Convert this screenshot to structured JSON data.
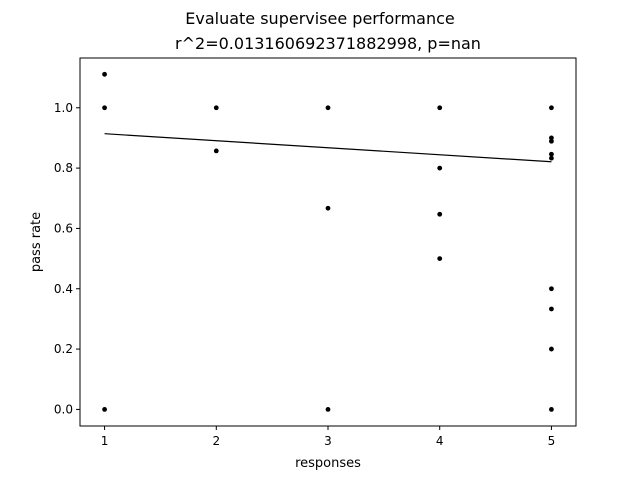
{
  "chart_data": {
    "type": "scatter",
    "suptitle": "Evaluate supervisee performance",
    "title": "r^2=0.013160692371882998, p=nan",
    "xlabel": "responses",
    "ylabel": "pass rate",
    "xlim": [
      0.78,
      5.22
    ],
    "ylim": [
      -0.055,
      1.165
    ],
    "xticks": [
      1,
      2,
      3,
      4,
      5
    ],
    "yticks": [
      0.0,
      0.2,
      0.4,
      0.6,
      0.8,
      1.0
    ],
    "xtick_labels": [
      "1",
      "2",
      "3",
      "4",
      "5"
    ],
    "ytick_labels": [
      "0.0",
      "0.2",
      "0.4",
      "0.6",
      "0.8",
      "1.0"
    ],
    "grid": false,
    "points": [
      {
        "x": 1,
        "y": 1.111
      },
      {
        "x": 1,
        "y": 1.0
      },
      {
        "x": 1,
        "y": 0.0
      },
      {
        "x": 2,
        "y": 1.0
      },
      {
        "x": 2,
        "y": 0.857
      },
      {
        "x": 3,
        "y": 1.0
      },
      {
        "x": 3,
        "y": 0.667
      },
      {
        "x": 3,
        "y": 0.0
      },
      {
        "x": 4,
        "y": 1.0
      },
      {
        "x": 4,
        "y": 0.8
      },
      {
        "x": 4,
        "y": 0.647
      },
      {
        "x": 4,
        "y": 0.5
      },
      {
        "x": 5,
        "y": 1.0
      },
      {
        "x": 5,
        "y": 0.9
      },
      {
        "x": 5,
        "y": 0.889
      },
      {
        "x": 5,
        "y": 0.846
      },
      {
        "x": 5,
        "y": 0.833
      },
      {
        "x": 5,
        "y": 0.4
      },
      {
        "x": 5,
        "y": 0.333
      },
      {
        "x": 5,
        "y": 0.2
      },
      {
        "x": 5,
        "y": 0.0
      }
    ],
    "fit_line": {
      "x": [
        1,
        5
      ],
      "y": [
        0.914,
        0.821
      ]
    },
    "colors": {
      "points": "#000000",
      "line": "#000000",
      "axes": "#000000",
      "background": "#ffffff"
    }
  }
}
